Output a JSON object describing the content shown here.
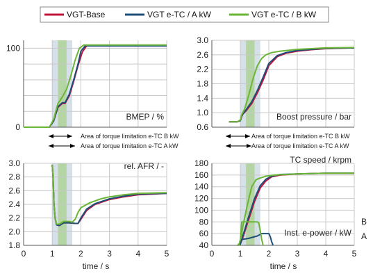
{
  "chart_data": {
    "type": "line",
    "legend": {
      "placement": "top",
      "entries": [
        {
          "label": "VGT-Base",
          "color": "#c0143c"
        },
        {
          "label": "VGT e-TC / A kW",
          "color": "#1f4e79"
        },
        {
          "label": "VGT e-TC / B kW",
          "color": "#6ab536"
        }
      ]
    },
    "shaded_regions": [
      {
        "label": "Area of torque limitation e-TC B kW",
        "x": [
          1.2,
          1.5
        ],
        "color": "#a8d08d"
      },
      {
        "label": "Area of torque limitation e-TC A kW",
        "x": [
          1.0,
          1.7
        ],
        "color": "#b4c7d6"
      }
    ],
    "xlabel": "time / s",
    "xlim": [
      0,
      5
    ],
    "xticks": [
      "0",
      "1",
      "2",
      "3",
      "4",
      "5"
    ],
    "grid": true,
    "panels": [
      {
        "label": "BMEP / %",
        "ylim": [
          0,
          110
        ],
        "yticks": [
          "0",
          "100"
        ],
        "series": [
          {
            "name": "VGT-Base",
            "x": [
              0,
              0.9,
              1.05,
              1.2,
              1.35,
              1.45,
              1.6,
              1.75,
              1.9,
              2.05,
              2.2,
              3.0,
              5.0
            ],
            "y": [
              0,
              0,
              8,
              25,
              30,
              30,
              40,
              58,
              78,
              95,
              103,
              103,
              103
            ]
          },
          {
            "name": "VGT e-TC / A kW",
            "x": [
              0,
              0.9,
              1.05,
              1.2,
              1.35,
              1.45,
              1.6,
              1.75,
              1.9,
              2.0,
              2.15,
              3.0,
              5.0
            ],
            "y": [
              0,
              0,
              8,
              26,
              31,
              31,
              42,
              60,
              80,
              96,
              103,
              103,
              103
            ]
          },
          {
            "name": "VGT e-TC / B kW",
            "x": [
              0,
              0.9,
              1.05,
              1.2,
              1.35,
              1.5,
              1.65,
              1.8,
              1.95,
              2.1,
              3.0,
              5.0
            ],
            "y": [
              0,
              0,
              10,
              30,
              38,
              48,
              65,
              85,
              100,
              104,
              104,
              104
            ]
          }
        ]
      },
      {
        "label": "Boost pressure / bar",
        "ylim": [
          0.6,
          3.0
        ],
        "yticks": [
          "0.6",
          "1.0",
          "1.4",
          "1.8",
          "2.2",
          "2.6",
          "3.0"
        ],
        "series": [
          {
            "name": "VGT-Base",
            "x": [
              0.6,
              0.9,
              1.0,
              1.05,
              1.1,
              1.2,
              1.4,
              1.6,
              1.8,
              2.0,
              2.3,
              2.6,
              3.0,
              3.5,
              4.0,
              5.0
            ],
            "y": [
              0.75,
              0.75,
              0.78,
              0.9,
              0.97,
              1.05,
              1.25,
              1.55,
              1.9,
              2.3,
              2.55,
              2.64,
              2.7,
              2.74,
              2.77,
              2.79
            ]
          },
          {
            "name": "VGT e-TC / A kW",
            "x": [
              0.6,
              0.9,
              1.0,
              1.05,
              1.1,
              1.2,
              1.4,
              1.6,
              1.8,
              2.0,
              2.3,
              2.6,
              3.0,
              3.5,
              4.0,
              5.0
            ],
            "y": [
              0.75,
              0.75,
              0.78,
              0.92,
              0.98,
              1.08,
              1.3,
              1.62,
              1.98,
              2.36,
              2.58,
              2.66,
              2.72,
              2.75,
              2.78,
              2.79
            ]
          },
          {
            "name": "VGT e-TC / B kW",
            "x": [
              0.6,
              0.9,
              1.0,
              1.05,
              1.15,
              1.3,
              1.45,
              1.6,
              1.75,
              1.9,
              2.1,
              2.4,
              3.0,
              3.5,
              4.0,
              5.0
            ],
            "y": [
              0.75,
              0.75,
              0.8,
              0.95,
              1.1,
              1.5,
              1.95,
              2.3,
              2.5,
              2.6,
              2.66,
              2.7,
              2.75,
              2.77,
              2.79,
              2.8
            ]
          }
        ]
      },
      {
        "label": "rel. AFR / -",
        "ylim": [
          1.8,
          3.0
        ],
        "yticks": [
          "1.8",
          "2.0",
          "2.2",
          "2.4",
          "2.6",
          "2.8",
          "3.0"
        ],
        "series": [
          {
            "name": "VGT-Base",
            "x": [
              1.0,
              1.03,
              1.06,
              1.1,
              1.15,
              1.25,
              1.4,
              1.6,
              1.8,
              1.9,
              2.0,
              2.2,
              2.5,
              3.0,
              3.5,
              4.0,
              5.0
            ],
            "y": [
              2.98,
              2.8,
              2.4,
              2.2,
              2.1,
              2.09,
              2.13,
              2.13,
              2.12,
              2.12,
              2.18,
              2.31,
              2.4,
              2.47,
              2.51,
              2.54,
              2.56
            ]
          },
          {
            "name": "VGT e-TC / A kW",
            "x": [
              1.0,
              1.03,
              1.06,
              1.1,
              1.15,
              1.25,
              1.4,
              1.6,
              1.8,
              1.9,
              2.0,
              2.2,
              2.5,
              3.0,
              3.5,
              4.0,
              5.0
            ],
            "y": [
              2.98,
              2.8,
              2.4,
              2.2,
              2.1,
              2.09,
              2.13,
              2.13,
              2.12,
              2.12,
              2.2,
              2.33,
              2.41,
              2.48,
              2.52,
              2.55,
              2.56
            ]
          },
          {
            "name": "VGT e-TC / B kW",
            "x": [
              1.0,
              1.03,
              1.06,
              1.1,
              1.15,
              1.25,
              1.4,
              1.6,
              1.7,
              1.8,
              1.9,
              2.0,
              2.3,
              2.7,
              3.0,
              3.5,
              4.0,
              5.0
            ],
            "y": [
              2.98,
              2.8,
              2.4,
              2.2,
              2.11,
              2.11,
              2.15,
              2.15,
              2.14,
              2.18,
              2.28,
              2.35,
              2.42,
              2.48,
              2.51,
              2.54,
              2.56,
              2.57
            ]
          }
        ]
      },
      {
        "label": "TC speed / krpm",
        "label2": "Inst. e-power / kW",
        "label_b": "B",
        "label_a": "A",
        "ylim": [
          40,
          180
        ],
        "yticks": [
          "40",
          "60",
          "80",
          "100",
          "120",
          "140",
          "160",
          "180"
        ],
        "series": [
          {
            "name": "VGT-Base",
            "x": [
              0.9,
              1.0,
              1.1,
              1.3,
              1.5,
              1.7,
              1.9,
              2.1,
              2.4,
              3.0,
              4.0,
              5.0
            ],
            "y": [
              40,
              42,
              55,
              85,
              115,
              138,
              150,
              157,
              160,
              162,
              163,
              163
            ]
          },
          {
            "name": "VGT e-TC / A kW",
            "x": [
              0.9,
              1.0,
              1.1,
              1.3,
              1.5,
              1.7,
              1.9,
              2.1,
              2.4,
              3.0,
              4.0,
              5.0
            ],
            "y": [
              40,
              42,
              58,
              90,
              120,
              142,
              153,
              158,
              161,
              162,
              163,
              163
            ]
          },
          {
            "name": "VGT e-TC / B kW",
            "x": [
              0.9,
              1.0,
              1.1,
              1.25,
              1.4,
              1.55,
              1.7,
              1.9,
              2.2,
              2.6,
              3.0,
              4.0,
              5.0
            ],
            "y": [
              40,
              45,
              75,
              110,
              140,
              152,
              155,
              158,
              160,
              161,
              162,
              163,
              163
            ]
          },
          {
            "name": "VGT e-TC / A kW",
            "x": [
              0.95,
              1.0,
              1.05,
              1.3,
              1.6,
              1.75,
              1.9,
              2.0,
              2.05,
              2.1,
              2.15
            ],
            "y": [
              40,
              44,
              50,
              52,
              56,
              60,
              60,
              60,
              55,
              46,
              40
            ]
          },
          {
            "name": "VGT e-TC / B kW",
            "x": [
              0.95,
              1.0,
              1.05,
              1.3,
              1.5,
              1.6,
              1.65,
              1.7,
              1.75,
              1.8
            ],
            "y": [
              40,
              50,
              80,
              80,
              80,
              80,
              78,
              65,
              50,
              40
            ]
          }
        ]
      }
    ]
  }
}
